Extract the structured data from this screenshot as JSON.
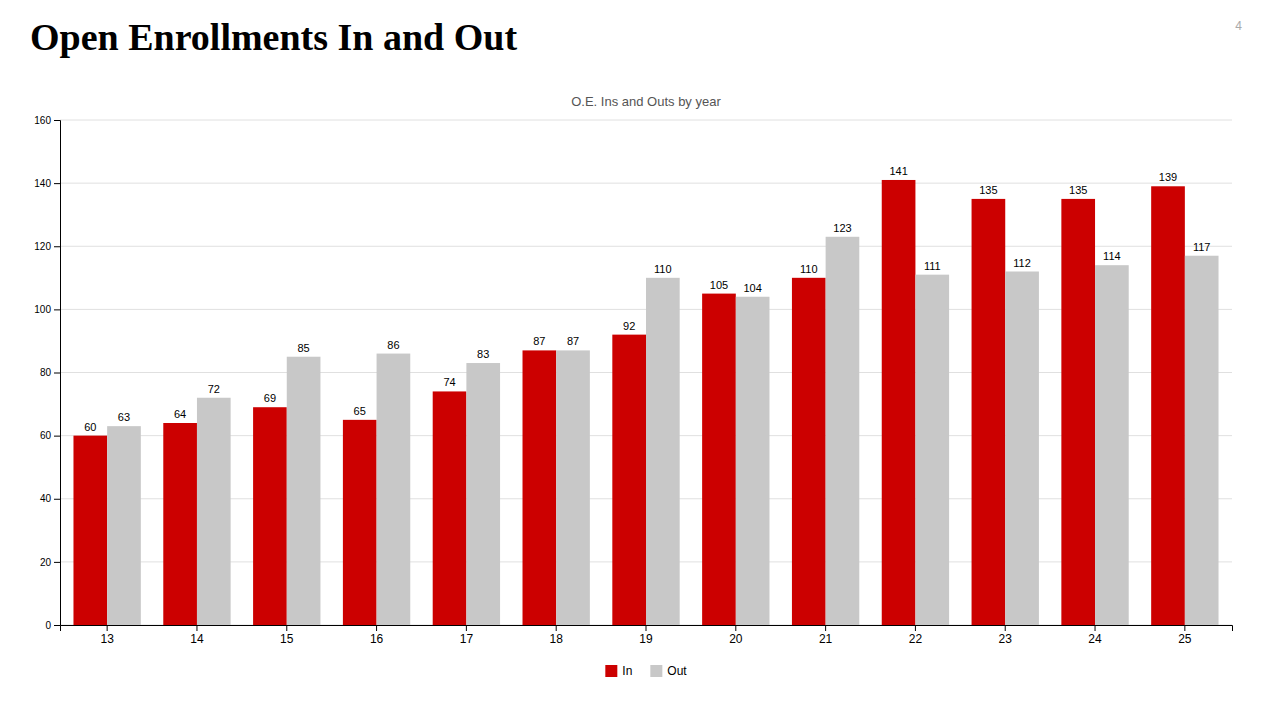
{
  "chart_data": {
    "type": "bar",
    "title": "Open Enrollments In and Out",
    "subtitle": "O.E. Ins and Outs by year",
    "annotations": [
      "4"
    ],
    "categories": [
      "13",
      "14",
      "15",
      "16",
      "17",
      "18",
      "19",
      "20",
      "21",
      "22",
      "23",
      "24",
      "25"
    ],
    "series": [
      {
        "name": "In",
        "color": "#CC0000",
        "values": [
          60,
          64,
          69,
          65,
          74,
          87,
          92,
          105,
          110,
          141,
          135,
          135,
          139
        ]
      },
      {
        "name": "Out",
        "color": "#C8C8C8",
        "values": [
          63,
          72,
          85,
          86,
          83,
          87,
          110,
          104,
          123,
          111,
          112,
          114,
          117
        ]
      }
    ],
    "ylim": [
      0,
      160
    ],
    "yticks": [
      0,
      20,
      40,
      60,
      80,
      100,
      120,
      140,
      160
    ],
    "grid": true,
    "data_labels": true,
    "legend": "bottom"
  }
}
